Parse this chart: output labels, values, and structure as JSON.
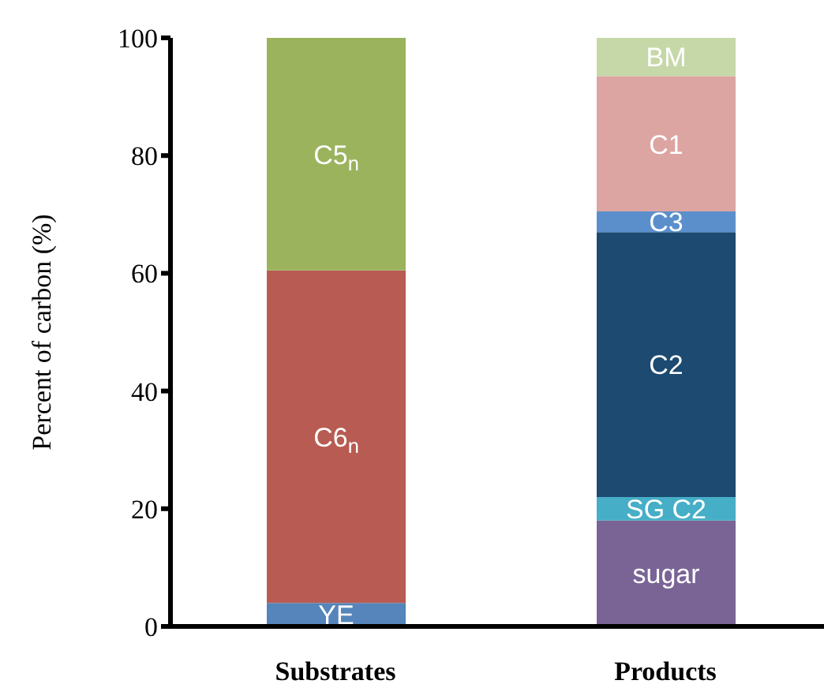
{
  "chart_data": {
    "type": "bar",
    "stacked": true,
    "ylabel": "Percent of carbon (%)",
    "categories": [
      "Substrates",
      "Products"
    ],
    "series": [
      {
        "name": "YE",
        "color": "#5585bb",
        "values": [
          4,
          null
        ]
      },
      {
        "name": "C6$_{n}$",
        "color": "#b85b52",
        "values": [
          56.5,
          null
        ]
      },
      {
        "name": "C5$_{n}$",
        "color": "#9bb35d",
        "values": [
          39.5,
          null
        ]
      },
      {
        "name": "sugar",
        "color": "#7a6496",
        "values": [
          null,
          18
        ]
      },
      {
        "name": "SG C2",
        "color": "#46aec6",
        "values": [
          null,
          4
        ]
      },
      {
        "name": "C2",
        "color": "#1c4a70",
        "values": [
          null,
          45
        ]
      },
      {
        "name": "C3",
        "color": "#5b8fcc",
        "values": [
          null,
          3.5
        ]
      },
      {
        "name": "C1",
        "color": "#dca5a2",
        "values": [
          null,
          23
        ]
      },
      {
        "name": "BM",
        "color": "#c6d8a8",
        "values": [
          null,
          6.5
        ]
      }
    ],
    "ylim": [
      0,
      100
    ],
    "yticks": [
      0,
      20,
      40,
      60,
      80,
      100
    ],
    "grid": false,
    "legend": false
  }
}
